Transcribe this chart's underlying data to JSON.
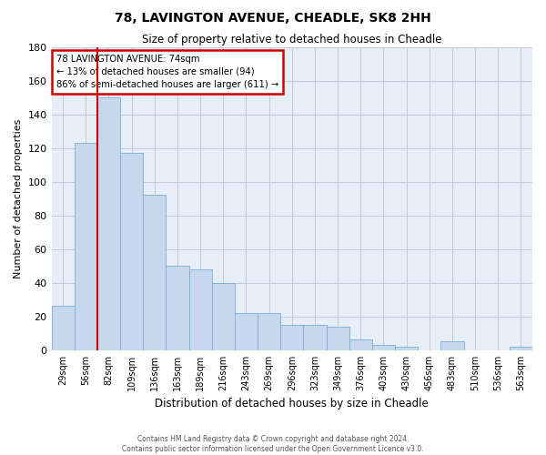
{
  "title1": "78, LAVINGTON AVENUE, CHEADLE, SK8 2HH",
  "title2": "Size of property relative to detached houses in Cheadle",
  "xlabel": "Distribution of detached houses by size in Cheadle",
  "ylabel": "Number of detached properties",
  "categories": [
    "29sqm",
    "56sqm",
    "82sqm",
    "109sqm",
    "136sqm",
    "163sqm",
    "189sqm",
    "216sqm",
    "243sqm",
    "269sqm",
    "296sqm",
    "323sqm",
    "349sqm",
    "376sqm",
    "403sqm",
    "430sqm",
    "456sqm",
    "483sqm",
    "510sqm",
    "536sqm",
    "563sqm"
  ],
  "values": [
    26,
    123,
    150,
    117,
    92,
    50,
    48,
    40,
    22,
    22,
    15,
    15,
    14,
    6,
    3,
    2,
    0,
    5,
    0,
    0,
    2
  ],
  "bar_color": "#c5d8ee",
  "bar_edge_color": "#7aadd4",
  "annotation_line1": "78 LAVINGTON AVENUE: 74sqm",
  "annotation_line2": "← 13% of detached houses are smaller (94)",
  "annotation_line3": "86% of semi-detached houses are larger (611) →",
  "annotation_box_color": "#ffffff",
  "annotation_box_edge_color": "#cc0000",
  "vline_color": "#cc0000",
  "vline_x_index": 1,
  "ylim": [
    0,
    180
  ],
  "yticks": [
    0,
    20,
    40,
    60,
    80,
    100,
    120,
    140,
    160,
    180
  ],
  "axes_background": "#e8eef8",
  "grid_color": "#c8c8d8",
  "footer1": "Contains HM Land Registry data © Crown copyright and database right 2024.",
  "footer2": "Contains public sector information licensed under the Open Government Licence v3.0."
}
